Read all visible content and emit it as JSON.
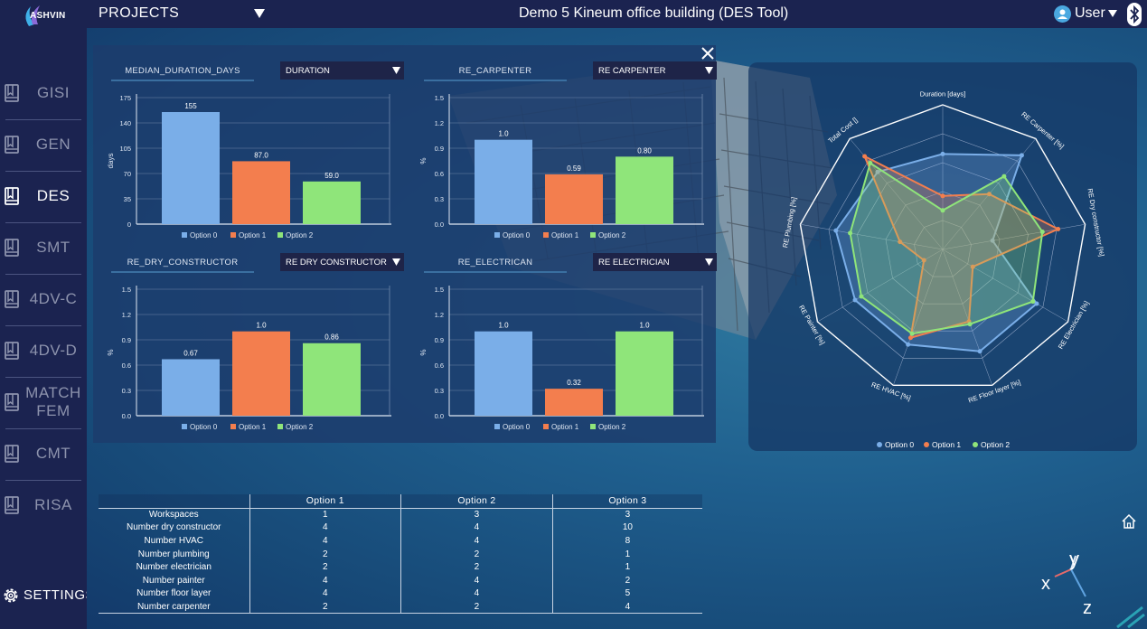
{
  "logo": {
    "text": "ASHVIN"
  },
  "header": {
    "projects_label": "PROJECTS",
    "title": "Demo 5 Kineum office building (DES Tool)",
    "user_label": "User"
  },
  "sidebar": {
    "items": [
      {
        "label": "GISI",
        "active": false
      },
      {
        "label": "GEN",
        "active": false
      },
      {
        "label": "DES",
        "active": true
      },
      {
        "label": "SMT",
        "active": false
      },
      {
        "label": "4DV-C",
        "active": false
      },
      {
        "label": "4DV-D",
        "active": false
      },
      {
        "label": "MATCH\nFEM",
        "active": false
      },
      {
        "label": "CMT",
        "active": false
      },
      {
        "label": "RISA",
        "active": false
      }
    ],
    "settings_label": "SETTINGS"
  },
  "colors": {
    "option0": "#7aaee8",
    "option1": "#f37e4e",
    "option2": "#8fe57a"
  },
  "chart_data": [
    {
      "type": "bar",
      "title": "MEDIAN_DURATION_DAYS",
      "select": "DURATION",
      "ylabel": "days",
      "categories": [
        "Option 0",
        "Option 1",
        "Option 2"
      ],
      "values": [
        155,
        87.0,
        59.0
      ],
      "value_labels": [
        "155",
        "87.0",
        "59.0"
      ],
      "ylim": [
        0,
        175
      ],
      "yticks": [
        "0",
        "35",
        "70",
        "105",
        "140",
        "175"
      ],
      "legend": [
        "Option 0",
        "Option 1",
        "Option 2"
      ]
    },
    {
      "type": "bar",
      "title": "RE_CARPENTER",
      "select": "RE CARPENTER",
      "ylabel": "%",
      "categories": [
        "Option 0",
        "Option 1",
        "Option 2"
      ],
      "values": [
        1.0,
        0.59,
        0.8
      ],
      "value_labels": [
        "1.0",
        "0.59",
        "0.80"
      ],
      "ylim": [
        0,
        1.5
      ],
      "yticks": [
        "0.0",
        "0.3",
        "0.6",
        "0.9",
        "1.2",
        "1.5"
      ],
      "legend": [
        "Option 0",
        "Option 1",
        "Option 2"
      ]
    },
    {
      "type": "bar",
      "title": "RE_DRY_CONSTRUCTOR",
      "select": "RE DRY CONSTRUCTOR",
      "ylabel": "%",
      "categories": [
        "Option 0",
        "Option 1",
        "Option 2"
      ],
      "values": [
        0.67,
        1.0,
        0.86
      ],
      "value_labels": [
        "0.67",
        "1.0",
        "0.86"
      ],
      "ylim": [
        0,
        1.5
      ],
      "yticks": [
        "0.0",
        "0.3",
        "0.6",
        "0.9",
        "1.2",
        "1.5"
      ],
      "legend": [
        "Option 0",
        "Option 1",
        "Option 2"
      ]
    },
    {
      "type": "bar",
      "title": "RE_ELECTRICAN",
      "select": "RE ELECTRICIAN",
      "ylabel": "%",
      "categories": [
        "Option 0",
        "Option 1",
        "Option 2"
      ],
      "values": [
        1.0,
        0.32,
        1.0
      ],
      "value_labels": [
        "1.0",
        "0.32",
        "1.0"
      ],
      "ylim": [
        0,
        1.5
      ],
      "yticks": [
        "0.0",
        "0.3",
        "0.6",
        "0.9",
        "1.2",
        "1.5"
      ],
      "legend": [
        "Option 0",
        "Option 1",
        "Option 2"
      ]
    },
    {
      "type": "radar",
      "axes": [
        "Duration [days]",
        "RE Carpenter [%]",
        "RE Dry constructor [%]",
        "RE Electrician [%]",
        "RE Floor layer [%]",
        "RE HVAC [%]",
        "RE Painter [%]",
        "RE Plumbing [%]",
        "Total Cost []"
      ],
      "rmax": 1.0,
      "rings": 5,
      "series": [
        {
          "name": "Option 0",
          "values": [
            0.66,
            0.85,
            0.35,
            0.75,
            0.75,
            0.7,
            0.7,
            0.75,
            0.7
          ]
        },
        {
          "name": "Option 1",
          "values": [
            0.37,
            0.5,
            0.81,
            0.24,
            0.53,
            0.65,
            0.15,
            0.3,
            0.84
          ]
        },
        {
          "name": "Option 2",
          "values": [
            0.27,
            0.66,
            0.7,
            0.72,
            0.55,
            0.62,
            0.65,
            0.65,
            0.78
          ]
        }
      ],
      "legend": [
        "Option 0",
        "Option 1",
        "Option 2"
      ]
    }
  ],
  "table": {
    "headers": [
      "",
      "Option 1",
      "Option 2",
      "Option 3"
    ],
    "rows": [
      [
        "Workspaces",
        "1",
        "3",
        "3"
      ],
      [
        "Number dry constructor",
        "4",
        "4",
        "10"
      ],
      [
        "Number HVAC",
        "4",
        "4",
        "8"
      ],
      [
        "Number plumbing",
        "2",
        "2",
        "1"
      ],
      [
        "Number electrician",
        "2",
        "2",
        "1"
      ],
      [
        "Number painter",
        "4",
        "4",
        "2"
      ],
      [
        "Number floor layer",
        "4",
        "4",
        "5"
      ],
      [
        "Number carpenter",
        "2",
        "2",
        "4"
      ]
    ]
  },
  "gizmo": {
    "x": "x",
    "y": "y",
    "z": "z"
  }
}
